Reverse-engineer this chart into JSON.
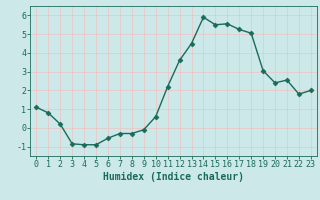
{
  "x": [
    0,
    1,
    2,
    3,
    4,
    5,
    6,
    7,
    8,
    9,
    10,
    11,
    12,
    13,
    14,
    15,
    16,
    17,
    18,
    19,
    20,
    21,
    22,
    23
  ],
  "y": [
    1.1,
    0.8,
    0.2,
    -0.85,
    -0.9,
    -0.9,
    -0.55,
    -0.3,
    -0.3,
    -0.1,
    0.6,
    2.2,
    3.6,
    4.5,
    5.9,
    5.5,
    5.55,
    5.25,
    5.05,
    3.05,
    2.4,
    2.55,
    1.8,
    2.0
  ],
  "line_color": "#1a6b5a",
  "marker": "D",
  "markersize": 2.5,
  "linewidth": 1.0,
  "xlabel": "Humidex (Indice chaleur)",
  "xlabel_fontsize": 7,
  "xlim": [
    -0.5,
    23.5
  ],
  "ylim": [
    -1.5,
    6.5
  ],
  "yticks": [
    -1,
    0,
    1,
    2,
    3,
    4,
    5,
    6
  ],
  "xticks": [
    0,
    1,
    2,
    3,
    4,
    5,
    6,
    7,
    8,
    9,
    10,
    11,
    12,
    13,
    14,
    15,
    16,
    17,
    18,
    19,
    20,
    21,
    22,
    23
  ],
  "bg_color": "#cce8e8",
  "grid_color": "#e8c8c8",
  "tick_color": "#1a6b5a",
  "label_color": "#1a6b5a",
  "tick_fontsize": 6,
  "grid_linewidth": 0.6
}
